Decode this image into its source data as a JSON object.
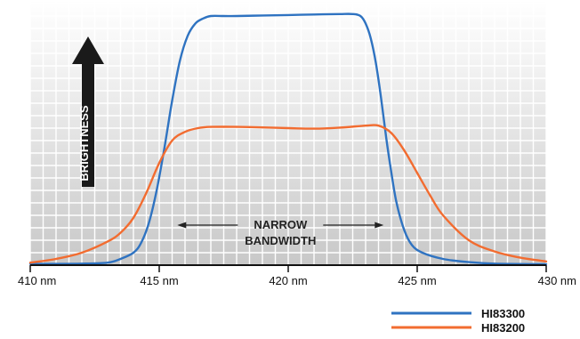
{
  "chart_data": {
    "type": "line",
    "title": "",
    "xlabel": "",
    "ylabel": "BRIGHTNESS",
    "x_unit": "nm",
    "xlim": [
      410,
      430
    ],
    "ylim": [
      0,
      1
    ],
    "grid": true,
    "legend_position": "bottom-right",
    "x_ticks": [
      {
        "value": 410,
        "label": "410 nm"
      },
      {
        "value": 415,
        "label": "415 nm"
      },
      {
        "value": 420,
        "label": "420 nm"
      },
      {
        "value": 425,
        "label": "425 nm"
      },
      {
        "value": 430,
        "label": "430 nm"
      }
    ],
    "annotation": {
      "line1": "NARROW",
      "line2": "BANDWIDTH",
      "x_start": 415.7,
      "x_end": 423.7
    },
    "series": [
      {
        "name": "HI83300",
        "color": "#2f73c1",
        "x": [
          410,
          412,
          413,
          413.5,
          414,
          414.3,
          414.6,
          414.9,
          415.2,
          415.5,
          415.8,
          416.1,
          416.4,
          416.7,
          417,
          417.5,
          418,
          419,
          420,
          421,
          422,
          422.5,
          422.8,
          423.0,
          423.2,
          423.4,
          423.6,
          423.8,
          424.0,
          424.2,
          424.5,
          424.8,
          425.2,
          426,
          427,
          428,
          430
        ],
        "y": [
          0.005,
          0.006,
          0.01,
          0.025,
          0.05,
          0.09,
          0.17,
          0.3,
          0.47,
          0.66,
          0.82,
          0.92,
          0.97,
          0.99,
          1.0,
          1.0,
          1.0,
          1.002,
          1.004,
          1.006,
          1.008,
          1.008,
          1.0,
          0.97,
          0.91,
          0.81,
          0.67,
          0.51,
          0.37,
          0.25,
          0.14,
          0.08,
          0.05,
          0.025,
          0.012,
          0.006,
          0.004
        ]
      },
      {
        "name": "HI83200",
        "color": "#f26c30",
        "x": [
          410,
          411,
          412,
          413,
          413.5,
          414,
          414.5,
          415,
          415.5,
          416,
          416.5,
          417,
          418,
          419,
          420,
          421,
          422,
          423,
          423.5,
          424,
          424.5,
          425,
          425.5,
          426,
          427,
          428,
          429,
          430
        ],
        "y": [
          0.01,
          0.025,
          0.05,
          0.095,
          0.13,
          0.19,
          0.29,
          0.41,
          0.5,
          0.535,
          0.55,
          0.555,
          0.555,
          0.553,
          0.55,
          0.548,
          0.552,
          0.56,
          0.56,
          0.53,
          0.46,
          0.37,
          0.28,
          0.2,
          0.1,
          0.055,
          0.03,
          0.015
        ]
      }
    ]
  }
}
